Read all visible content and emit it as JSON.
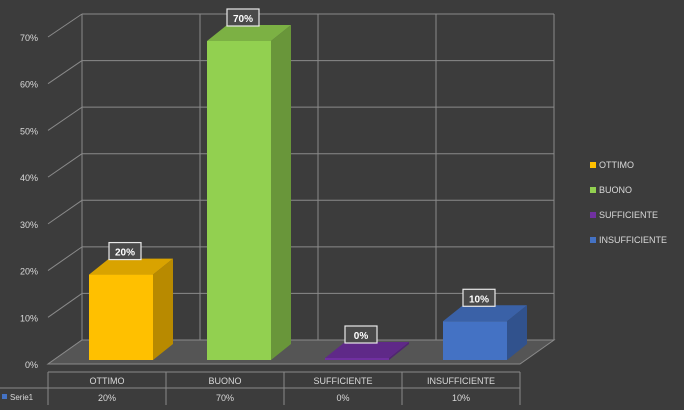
{
  "chart_data": {
    "type": "bar",
    "style": "3d-column",
    "categories": [
      "OTTIMO",
      "BUONO",
      "SUFFICIENTE",
      "INSUFFICIENTE"
    ],
    "series": [
      {
        "name": "Serie1",
        "values": [
          20,
          70,
          0,
          10
        ]
      }
    ],
    "data_labels": [
      "20%",
      "70%",
      "0%",
      "10%"
    ],
    "y_ticks": [
      "0%",
      "10%",
      "20%",
      "30%",
      "40%",
      "50%",
      "60%",
      "70%"
    ],
    "ylim": [
      0,
      70
    ],
    "grid": true,
    "legend_position": "right",
    "data_table": true,
    "table_values": [
      "20%",
      "70%",
      "0%",
      "10%"
    ],
    "colors": {
      "background": "#3c3c3c",
      "grid": "#8a8a8a",
      "text": "#d9d9d9",
      "bars": [
        "#ffc000",
        "#92d050",
        "#7030a0",
        "#4472c4"
      ]
    }
  }
}
